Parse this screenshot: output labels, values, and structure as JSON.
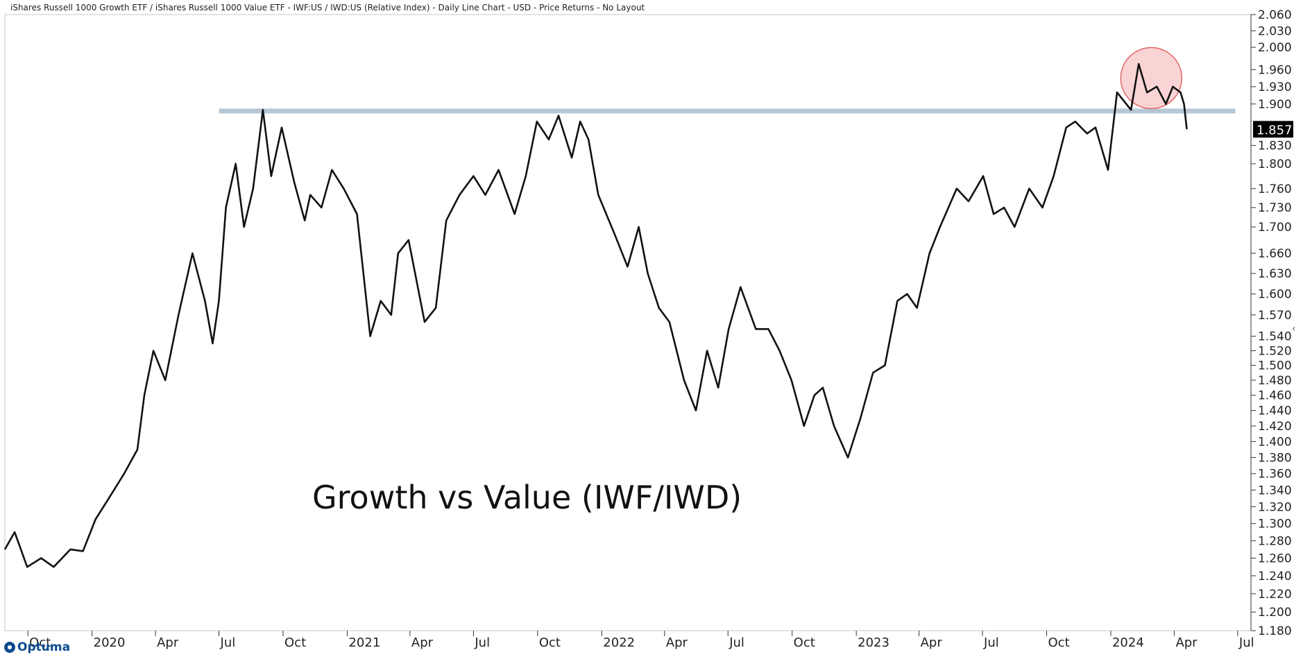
{
  "title": "iShares Russell 1000 Growth ETF / iShares Russell 1000 Value ETF - IWF:US / IWD:US (Relative Index) - Daily Line Chart - USD - Price Returns - No Layout",
  "annotation": "Growth vs Value (IWF/IWD)",
  "logo": "Optuma",
  "colors": {
    "line": "#111111",
    "resistance": "#b7c6d4",
    "highlight_fill": "rgba(245,160,160,0.45)",
    "highlight_stroke": "#e06666",
    "last_label_bg": "#000000"
  },
  "chart_data": {
    "type": "line",
    "scale": "log",
    "series": [
      {
        "x": [
          "2019-08-29",
          "2019-09-12",
          "2019-09-30",
          "2019-10-20",
          "2019-11-07",
          "2019-12-01",
          "2019-12-19",
          "2020-01-06",
          "2020-01-25",
          "2020-02-16",
          "2020-03-06",
          "2020-03-16",
          "2020-03-29",
          "2020-04-15",
          "2020-05-04",
          "2020-05-24",
          "2020-06-11",
          "2020-06-22",
          "2020-07-01",
          "2020-07-11",
          "2020-07-25",
          "2020-08-06",
          "2020-08-19",
          "2020-09-02",
          "2020-09-14",
          "2020-09-29",
          "2020-10-17",
          "2020-11-01",
          "2020-11-09",
          "2020-11-25",
          "2020-12-10",
          "2020-12-27",
          "2021-01-15",
          "2021-02-03",
          "2021-02-18",
          "2021-03-05",
          "2021-03-15",
          "2021-03-30",
          "2021-04-22",
          "2021-05-08",
          "2021-05-23",
          "2021-06-11",
          "2021-07-01",
          "2021-07-18",
          "2021-08-06",
          "2021-08-29",
          "2021-09-14",
          "2021-09-30",
          "2021-10-17",
          "2021-10-31",
          "2021-11-19",
          "2021-12-01",
          "2021-12-13",
          "2021-12-27",
          "2022-01-19",
          "2022-02-07",
          "2022-02-23",
          "2022-03-08",
          "2022-03-24",
          "2022-04-08",
          "2022-04-29",
          "2022-05-16",
          "2022-06-01",
          "2022-06-17",
          "2022-07-02",
          "2022-07-19",
          "2022-08-10",
          "2022-08-28",
          "2022-09-13",
          "2022-09-30",
          "2022-10-18",
          "2022-11-02",
          "2022-11-14",
          "2022-11-30",
          "2022-12-20",
          "2023-01-07",
          "2023-01-25",
          "2023-02-11",
          "2023-03-01",
          "2023-03-15",
          "2023-03-29",
          "2023-04-16",
          "2023-05-01",
          "2023-05-25",
          "2023-06-11",
          "2023-07-02",
          "2023-07-17",
          "2023-08-01",
          "2023-08-16",
          "2023-09-06",
          "2023-09-25",
          "2023-10-11",
          "2023-10-29",
          "2023-11-11",
          "2023-11-28",
          "2023-12-10",
          "2023-12-28",
          "2024-01-10",
          "2024-01-30",
          "2024-02-10",
          "2024-02-22",
          "2024-03-07",
          "2024-03-20",
          "2024-03-30",
          "2024-04-10",
          "2024-04-15",
          "2024-04-19"
        ],
        "y": [
          1.27,
          1.29,
          1.25,
          1.26,
          1.25,
          1.27,
          1.268,
          1.305,
          1.33,
          1.36,
          1.39,
          1.46,
          1.52,
          1.48,
          1.57,
          1.66,
          1.59,
          1.53,
          1.59,
          1.73,
          1.8,
          1.7,
          1.76,
          1.89,
          1.78,
          1.86,
          1.77,
          1.71,
          1.75,
          1.73,
          1.79,
          1.76,
          1.72,
          1.54,
          1.59,
          1.57,
          1.66,
          1.68,
          1.56,
          1.58,
          1.71,
          1.75,
          1.78,
          1.75,
          1.79,
          1.72,
          1.78,
          1.87,
          1.84,
          1.88,
          1.81,
          1.87,
          1.84,
          1.75,
          1.69,
          1.64,
          1.7,
          1.63,
          1.58,
          1.56,
          1.48,
          1.44,
          1.52,
          1.47,
          1.55,
          1.61,
          1.55,
          1.55,
          1.52,
          1.48,
          1.42,
          1.46,
          1.47,
          1.42,
          1.38,
          1.43,
          1.49,
          1.5,
          1.59,
          1.6,
          1.58,
          1.66,
          1.7,
          1.76,
          1.74,
          1.78,
          1.72,
          1.73,
          1.7,
          1.76,
          1.73,
          1.78,
          1.86,
          1.87,
          1.85,
          1.86,
          1.79,
          1.92,
          1.89,
          1.97,
          1.92,
          1.93,
          1.9,
          1.93,
          1.92,
          1.9,
          1.857
        ]
      }
    ],
    "ylim": [
      1.18,
      2.06
    ],
    "yticks": [
      "2.060",
      "2.030",
      "2.000",
      "1.960",
      "1.930",
      "1.900",
      "1.830",
      "1.800",
      "1.760",
      "1.730",
      "1.700",
      "1.660",
      "1.630",
      "1.600",
      "1.570",
      "1.540",
      "1.520",
      "1.500",
      "1.480",
      "1.460",
      "1.440",
      "1.420",
      "1.400",
      "1.380",
      "1.360",
      "1.340",
      "1.320",
      "1.300",
      "1.280",
      "1.260",
      "1.240",
      "1.220",
      "1.200",
      "1.180"
    ],
    "xticks": [
      {
        "label": "Oct",
        "date": "2019-10-01"
      },
      {
        "label": "2020",
        "date": "2020-01-01"
      },
      {
        "label": "Apr",
        "date": "2020-04-01"
      },
      {
        "label": "Jul",
        "date": "2020-07-01"
      },
      {
        "label": "Oct",
        "date": "2020-10-01"
      },
      {
        "label": "2021",
        "date": "2021-01-01"
      },
      {
        "label": "Apr",
        "date": "2021-04-01"
      },
      {
        "label": "Jul",
        "date": "2021-07-01"
      },
      {
        "label": "Oct",
        "date": "2021-10-01"
      },
      {
        "label": "2022",
        "date": "2022-01-01"
      },
      {
        "label": "Apr",
        "date": "2022-04-01"
      },
      {
        "label": "Jul",
        "date": "2022-07-01"
      },
      {
        "label": "Oct",
        "date": "2022-10-01"
      },
      {
        "label": "2023",
        "date": "2023-01-01"
      },
      {
        "label": "Apr",
        "date": "2023-04-01"
      },
      {
        "label": "Jul",
        "date": "2023-07-01"
      },
      {
        "label": "Oct",
        "date": "2023-10-01"
      },
      {
        "label": "2024",
        "date": "2024-01-01"
      },
      {
        "label": "Apr",
        "date": "2024-04-01"
      },
      {
        "label": "Jul",
        "date": "2024-07-01"
      }
    ],
    "last_value": "1.857",
    "resistance_line": {
      "y": 1.888,
      "start": "2020-07-01",
      "end": "2024-04-19"
    },
    "highlight_circle": {
      "center_date": "2024-02-28",
      "center_y": 1.945
    },
    "grid": false
  }
}
